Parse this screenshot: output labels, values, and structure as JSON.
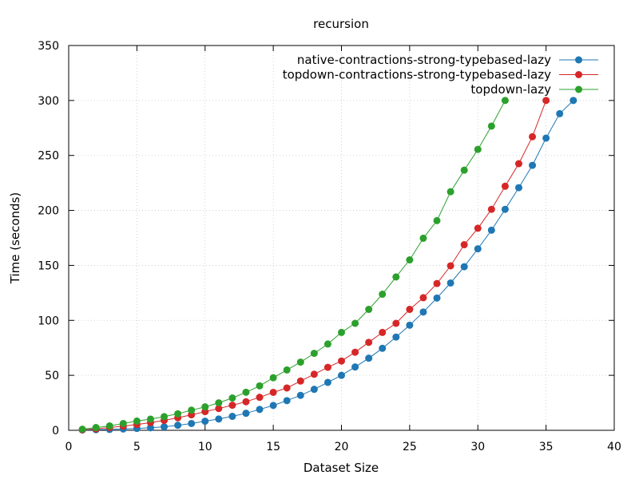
{
  "chart_data": {
    "type": "line",
    "title": "recursion",
    "xlabel": "Dataset Size",
    "ylabel": "Time (seconds)",
    "xlim": [
      0,
      40
    ],
    "ylim": [
      0,
      350
    ],
    "xticks": [
      "0",
      "5",
      "10",
      "15",
      "20",
      "25",
      "30",
      "35",
      "40"
    ],
    "yticks": [
      "0",
      "50",
      "100",
      "150",
      "200",
      "250",
      "300",
      "350"
    ],
    "grid": true,
    "legend_position": "top-right",
    "series": [
      {
        "name": "native-contractions-strong-typebased-lazy",
        "color": "#1f77b4",
        "x": [
          1,
          2,
          3,
          4,
          5,
          6,
          7,
          8,
          9,
          10,
          11,
          12,
          13,
          14,
          15,
          16,
          17,
          18,
          19,
          20,
          21,
          22,
          23,
          24,
          25,
          26,
          27,
          28,
          29,
          30,
          31,
          32,
          33,
          34,
          35,
          36,
          37
        ],
        "y": [
          0.3,
          0.5,
          0.8,
          1.2,
          1.7,
          2.3,
          3.2,
          4.6,
          6.2,
          8.3,
          10.3,
          12.7,
          15.5,
          19.0,
          22.6,
          27.0,
          31.8,
          37.3,
          43.6,
          50.0,
          57.6,
          65.6,
          74.6,
          84.8,
          95.6,
          107.6,
          120.3,
          134.0,
          148.8,
          165.1,
          182.0,
          201.0,
          220.7,
          241.0,
          265.8,
          288.0,
          300.0
        ]
      },
      {
        "name": "topdown-contractions-strong-typebased-lazy",
        "color": "#d62728",
        "x": [
          1,
          2,
          3,
          4,
          5,
          6,
          7,
          8,
          9,
          10,
          11,
          12,
          13,
          14,
          15,
          16,
          17,
          18,
          19,
          20,
          21,
          22,
          23,
          24,
          25,
          26,
          27,
          28,
          29,
          30,
          31,
          32,
          33,
          34,
          35
        ],
        "y": [
          0.5,
          1.3,
          2.5,
          3.8,
          5.3,
          7.0,
          9.0,
          11.4,
          14.1,
          17.0,
          19.8,
          22.8,
          26.0,
          30.0,
          34.5,
          38.5,
          44.8,
          51.0,
          57.3,
          63.0,
          71.0,
          80.0,
          89.0,
          97.3,
          110.0,
          120.6,
          133.5,
          149.6,
          168.8,
          183.8,
          201.0,
          222.0,
          242.5,
          267.0,
          300.0
        ]
      },
      {
        "name": "topdown-lazy",
        "color": "#2ca02c",
        "x": [
          1,
          2,
          3,
          4,
          5,
          6,
          7,
          8,
          9,
          10,
          11,
          12,
          13,
          14,
          15,
          16,
          17,
          18,
          19,
          20,
          21,
          22,
          23,
          24,
          25,
          26,
          27,
          28,
          29,
          30,
          31,
          32
        ],
        "y": [
          1.0,
          2.5,
          4.0,
          6.2,
          8.4,
          10.2,
          12.4,
          15.0,
          18.3,
          21.3,
          25.0,
          29.4,
          34.6,
          40.4,
          47.8,
          54.9,
          62.0,
          70.0,
          78.5,
          89.0,
          97.3,
          110.0,
          123.8,
          139.5,
          155.0,
          174.7,
          190.7,
          217.0,
          236.6,
          255.5,
          276.7,
          300.0
        ]
      }
    ]
  }
}
